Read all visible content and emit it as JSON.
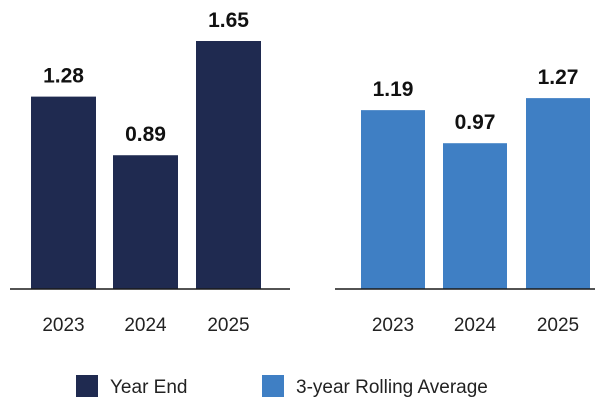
{
  "chart_data": [
    {
      "type": "bar",
      "categories": [
        "2023",
        "2024",
        "2025"
      ],
      "series": [
        {
          "name": "Year End",
          "values": [
            1.28,
            0.89,
            1.65
          ]
        }
      ],
      "value_labels": [
        "1.28",
        "0.89",
        "1.65"
      ],
      "color": "#1f2a50"
    },
    {
      "type": "bar",
      "categories": [
        "2023",
        "2024",
        "2025"
      ],
      "series": [
        {
          "name": "3-year Rolling Average",
          "values": [
            1.19,
            0.97,
            1.27
          ]
        }
      ],
      "value_labels": [
        "1.19",
        "0.97",
        "1.27"
      ],
      "color": "#3f7fc4"
    }
  ],
  "legend": {
    "placement": "bottom-center",
    "items": [
      {
        "label": "Year End",
        "color": "#1f2a50"
      },
      {
        "label": "3-year Rolling Average",
        "color": "#3f7fc4"
      }
    ]
  },
  "grid": false
}
